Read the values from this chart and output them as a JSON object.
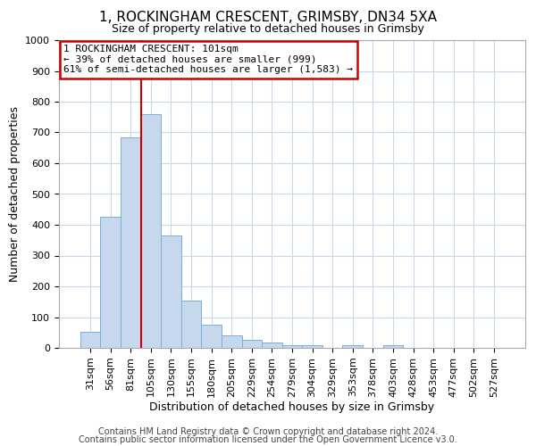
{
  "title": "1, ROCKINGHAM CRESCENT, GRIMSBY, DN34 5XA",
  "subtitle": "Size of property relative to detached houses in Grimsby",
  "xlabel": "Distribution of detached houses by size in Grimsby",
  "ylabel": "Number of detached properties",
  "bar_labels": [
    "31sqm",
    "56sqm",
    "81sqm",
    "105sqm",
    "130sqm",
    "155sqm",
    "180sqm",
    "205sqm",
    "229sqm",
    "254sqm",
    "279sqm",
    "304sqm",
    "329sqm",
    "353sqm",
    "378sqm",
    "403sqm",
    "428sqm",
    "453sqm",
    "477sqm",
    "502sqm",
    "527sqm"
  ],
  "bar_values": [
    52,
    425,
    685,
    760,
    365,
    155,
    75,
    40,
    27,
    17,
    10,
    8,
    0,
    8,
    0,
    8,
    0,
    0,
    0,
    0,
    0
  ],
  "bar_color": "#c5d8ed",
  "bar_edge_color": "#7bafd4",
  "vline_x_index": 2.5,
  "vline_color": "#cc0000",
  "ylim": [
    0,
    1000
  ],
  "yticks": [
    0,
    100,
    200,
    300,
    400,
    500,
    600,
    700,
    800,
    900,
    1000
  ],
  "annotation_title": "1 ROCKINGHAM CRESCENT: 101sqm",
  "annotation_line1": "← 39% of detached houses are smaller (999)",
  "annotation_line2": "61% of semi-detached houses are larger (1,583) →",
  "annotation_box_color": "#ffffff",
  "annotation_edge_color": "#cc0000",
  "footer1": "Contains HM Land Registry data © Crown copyright and database right 2024.",
  "footer2": "Contains public sector information licensed under the Open Government Licence v3.0.",
  "background_color": "#ffffff",
  "grid_color": "#c8d8e8",
  "title_fontsize": 11,
  "subtitle_fontsize": 9,
  "xlabel_fontsize": 9,
  "ylabel_fontsize": 9,
  "tick_fontsize": 8,
  "annotation_fontsize": 8,
  "footer_fontsize": 7
}
